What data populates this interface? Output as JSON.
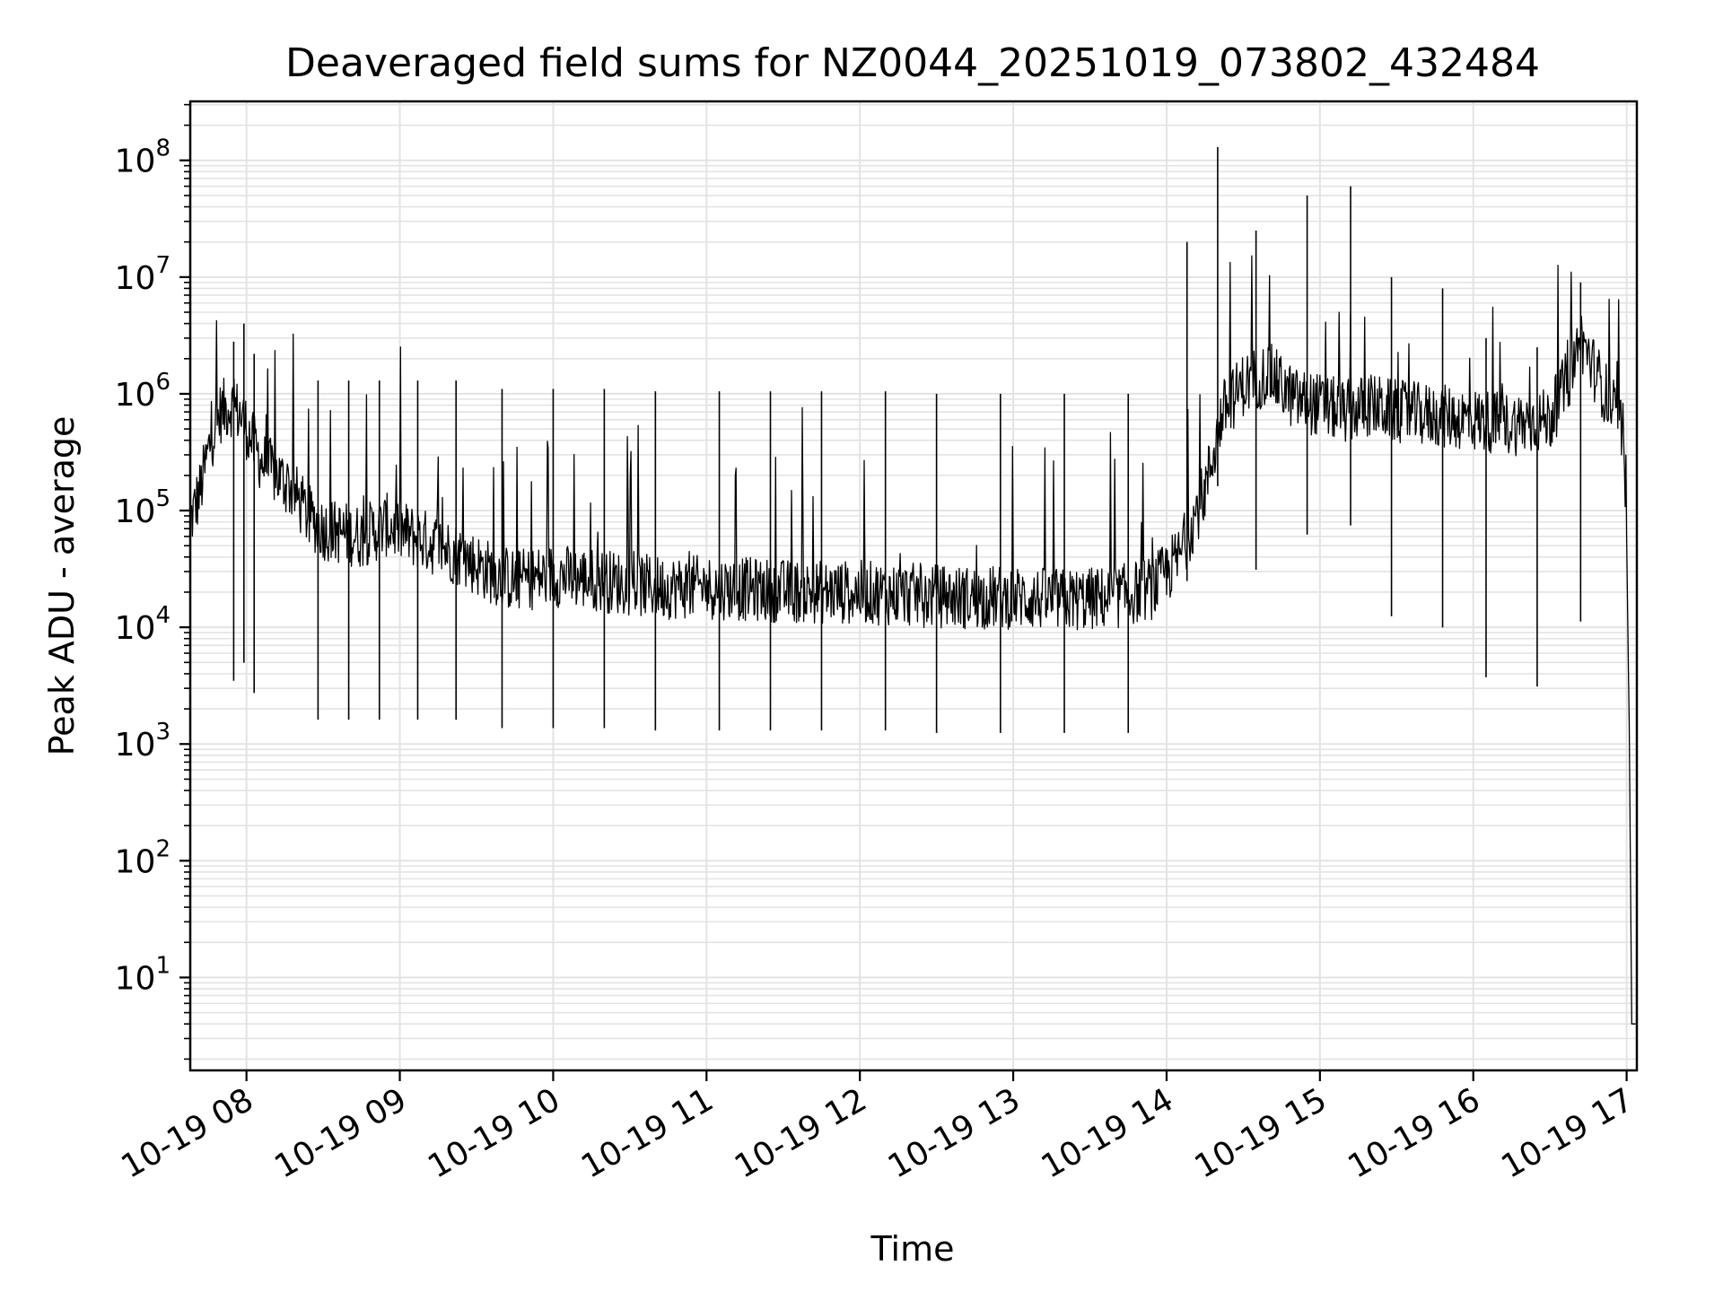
{
  "chart_data": {
    "type": "line",
    "title": "Deaveraged field sums for NZ0044_20251019_073802_432484",
    "xlabel": "Time",
    "ylabel": "Peak ADU - average",
    "yscale": "log",
    "grid": true,
    "line_color": "#000000",
    "grid_color": "#e3e3e3",
    "x_tick_labels": [
      "10-19 08",
      "10-19 09",
      "10-19 10",
      "10-19 11",
      "10-19 12",
      "10-19 13",
      "10-19 14",
      "10-19 15",
      "10-19 16",
      "10-19 17"
    ],
    "y_tick_labels": [
      {
        "base": "10",
        "exp": "1",
        "value": 10
      },
      {
        "base": "10",
        "exp": "2",
        "value": 100
      },
      {
        "base": "10",
        "exp": "3",
        "value": 1000
      },
      {
        "base": "10",
        "exp": "4",
        "value": 10000
      },
      {
        "base": "10",
        "exp": "5",
        "value": 100000
      },
      {
        "base": "10",
        "exp": "6",
        "value": 1000000
      },
      {
        "base": "10",
        "exp": "7",
        "value": 10000000
      },
      {
        "base": "10",
        "exp": "8",
        "value": 100000000
      }
    ],
    "xlim": [
      "2025-10-19 07:38",
      "2025-10-19 17:04"
    ],
    "ylim": [
      1.6,
      320000000
    ],
    "series": [
      {
        "x": [
          "2025-10-19 07:38",
          "2025-10-19 07:42",
          "2025-10-19 07:46",
          "2025-10-19 07:50",
          "2025-10-19 07:54",
          "2025-10-19 07:58",
          "2025-10-19 08:02",
          "2025-10-19 08:06",
          "2025-10-19 08:12",
          "2025-10-19 08:18",
          "2025-10-19 08:24",
          "2025-10-19 08:30",
          "2025-10-19 08:36",
          "2025-10-19 08:45",
          "2025-10-19 08:55",
          "2025-10-19 09:05",
          "2025-10-19 09:15",
          "2025-10-19 09:25",
          "2025-10-19 09:35",
          "2025-10-19 09:45",
          "2025-10-19 10:00",
          "2025-10-19 10:20",
          "2025-10-19 10:40",
          "2025-10-19 11:00",
          "2025-10-19 11:20",
          "2025-10-19 11:40",
          "2025-10-19 12:00",
          "2025-10-19 12:20",
          "2025-10-19 12:40",
          "2025-10-19 13:00",
          "2025-10-19 13:20",
          "2025-10-19 13:40",
          "2025-10-19 13:55",
          "2025-10-19 14:05",
          "2025-10-19 14:15",
          "2025-10-19 14:22",
          "2025-10-19 14:30",
          "2025-10-19 14:40",
          "2025-10-19 14:50",
          "2025-10-19 15:00",
          "2025-10-19 15:10",
          "2025-10-19 15:20",
          "2025-10-19 15:30",
          "2025-10-19 15:45",
          "2025-10-19 16:00",
          "2025-10-19 16:15",
          "2025-10-19 16:30",
          "2025-10-19 16:38",
          "2025-10-19 16:42",
          "2025-10-19 16:48",
          "2025-10-19 16:54",
          "2025-10-19 16:58",
          "2025-10-19 17:00",
          "2025-10-19 17:01",
          "2025-10-19 17:02",
          "2025-10-19 17:04"
        ],
        "y": [
          80000,
          150000,
          400000,
          700000,
          800000,
          650000,
          400000,
          260000,
          200000,
          150000,
          90000,
          70000,
          65000,
          60000,
          75000,
          60000,
          50000,
          40000,
          30000,
          25000,
          28000,
          25000,
          22000,
          22000,
          21000,
          20000,
          20000,
          19000,
          18000,
          18000,
          17000,
          18000,
          22000,
          40000,
          150000,
          700000,
          1200000,
          1500000,
          900000,
          800000,
          700000,
          800000,
          700000,
          650000,
          600000,
          550000,
          600000,
          1500000,
          3000000,
          1500000,
          800000,
          500000,
          60000,
          1500,
          4,
          4
        ]
      }
    ],
    "spikes": [
      {
        "x": "2025-10-19 07:55",
        "y": 2800000
      },
      {
        "x": "2025-10-19 07:59",
        "y": 4000000
      },
      {
        "x": "2025-10-19 08:03",
        "y": 2200000
      },
      {
        "x": "2025-10-19 08:28",
        "y": 1300000
      },
      {
        "x": "2025-10-19 08:40",
        "y": 1300000
      },
      {
        "x": "2025-10-19 08:52",
        "y": 1300000
      },
      {
        "x": "2025-10-19 09:07",
        "y": 1300000
      },
      {
        "x": "2025-10-19 09:22",
        "y": 1300000
      },
      {
        "x": "2025-10-19 09:40",
        "y": 1100000
      },
      {
        "x": "2025-10-19 10:00",
        "y": 1100000
      },
      {
        "x": "2025-10-19 10:20",
        "y": 1100000
      },
      {
        "x": "2025-10-19 10:40",
        "y": 1050000
      },
      {
        "x": "2025-10-19 11:05",
        "y": 1050000
      },
      {
        "x": "2025-10-19 11:25",
        "y": 1050000
      },
      {
        "x": "2025-10-19 11:45",
        "y": 1050000
      },
      {
        "x": "2025-10-19 12:10",
        "y": 1050000
      },
      {
        "x": "2025-10-19 12:30",
        "y": 1000000
      },
      {
        "x": "2025-10-19 12:55",
        "y": 1000000
      },
      {
        "x": "2025-10-19 13:20",
        "y": 1000000
      },
      {
        "x": "2025-10-19 13:45",
        "y": 1000000
      },
      {
        "x": "2025-10-19 14:08",
        "y": 20000000
      },
      {
        "x": "2025-10-19 14:20",
        "y": 130000000
      },
      {
        "x": "2025-10-19 14:35",
        "y": 25000000
      },
      {
        "x": "2025-10-19 14:55",
        "y": 50000000
      },
      {
        "x": "2025-10-19 15:12",
        "y": 60000000
      },
      {
        "x": "2025-10-19 15:28",
        "y": 10000000
      },
      {
        "x": "2025-10-19 15:48",
        "y": 8000000
      },
      {
        "x": "2025-10-19 16:05",
        "y": 3000000
      },
      {
        "x": "2025-10-19 16:25",
        "y": 2500000
      },
      {
        "x": "2025-10-19 16:42",
        "y": 9000000
      }
    ]
  }
}
